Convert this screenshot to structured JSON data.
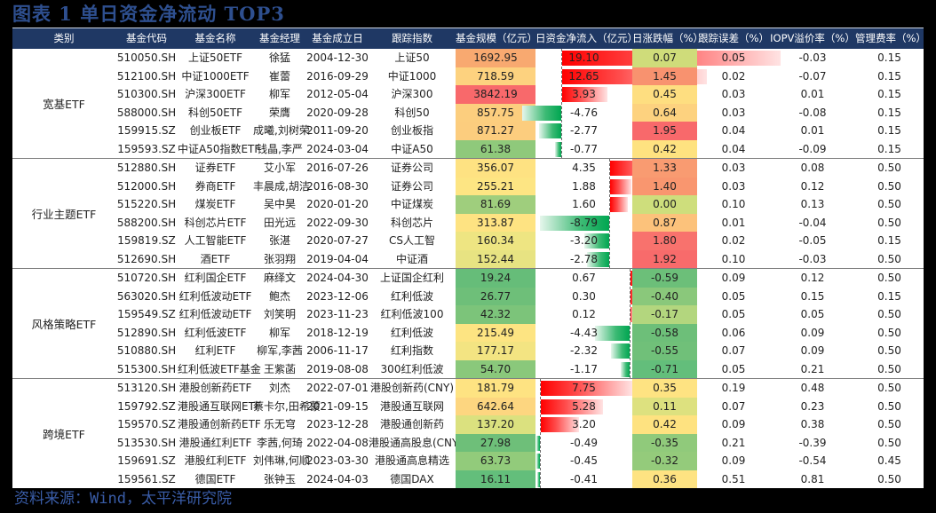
{
  "title": "图表 1 单日资金净流动 TOP3",
  "footer": "资料来源：Wind，太平洋研究院",
  "headers": [
    "类别",
    "基金代码",
    "基金名称",
    "基金经理",
    "基金成立日",
    "跟踪指数",
    "基金规模（亿元）",
    "日资金净流入（亿元）",
    "日涨跌幅（%）",
    "跟踪误差（%）",
    "IOPV溢价率（%）",
    "管理费率（%）"
  ],
  "colors": {
    "header_bg": "#1f3864",
    "title": "#2e4f8f",
    "footer": "#3a5da8",
    "bar_pos": "#ff0000",
    "bar_neg": "#00a651"
  },
  "groups": [
    {
      "label": "宽基ETF",
      "rows": [
        {
          "code": "510050.SH",
          "name": "上证50ETF",
          "manager": "徐猛",
          "date": "2004-12-30",
          "index": "上证50",
          "size": "1692.95",
          "flow": "19.10",
          "chg": "0.07",
          "te": "0.05",
          "iopv": "-0.03",
          "fee": "0.15",
          "size_color": "#f8a970",
          "chg_color": "#cfdc7a"
        },
        {
          "code": "512100.SH",
          "name": "中证1000ETF",
          "manager": "崔蕾",
          "date": "2016-09-29",
          "index": "中证1000",
          "size": "718.59",
          "flow": "12.65",
          "chg": "1.45",
          "te": "0.02",
          "iopv": "-0.07",
          "fee": "0.15",
          "size_color": "#fdd27f",
          "chg_color": "#f8926f"
        },
        {
          "code": "510300.SH",
          "name": "沪深300ETF",
          "manager": "柳军",
          "date": "2012-05-04",
          "index": "沪深300",
          "size": "3842.19",
          "flow": "3.93",
          "chg": "0.45",
          "te": "0.03",
          "iopv": "0.01",
          "fee": "0.15",
          "size_color": "#f8696b",
          "chg_color": "#fede80"
        },
        {
          "code": "588000.SH",
          "name": "科创50ETF",
          "manager": "荣膺",
          "date": "2020-09-28",
          "index": "科创50",
          "size": "857.75",
          "flow": "-4.76",
          "chg": "0.64",
          "te": "0.03",
          "iopv": "-0.08",
          "fee": "0.15",
          "size_color": "#fcce7e",
          "chg_color": "#fdd27f"
        },
        {
          "code": "159915.SZ",
          "name": "创业板ETF",
          "manager": "成曦,刘树荣",
          "date": "2011-09-20",
          "index": "创业板指",
          "size": "871.27",
          "flow": "-2.77",
          "chg": "1.95",
          "te": "0.04",
          "iopv": "0.01",
          "fee": "0.15",
          "size_color": "#fccd7e",
          "chg_color": "#f8696b"
        },
        {
          "code": "159593.SZ",
          "name": "中证A50指数ETF",
          "manager": "钱晶,李严",
          "date": "2024-03-04",
          "index": "中证A50",
          "size": "61.38",
          "flow": "-0.77",
          "chg": "0.42",
          "te": "0.04",
          "iopv": "-0.09",
          "fee": "0.15",
          "size_color": "#8fc97b",
          "chg_color": "#fee280"
        }
      ]
    },
    {
      "label": "行业主题ETF",
      "rows": [
        {
          "code": "512880.SH",
          "name": "证券ETF",
          "manager": "艾小军",
          "date": "2016-07-26",
          "index": "证券公司",
          "size": "356.07",
          "flow": "4.35",
          "chg": "1.33",
          "te": "0.03",
          "iopv": "0.08",
          "fee": "0.50",
          "size_color": "#fee282",
          "chg_color": "#f99b71"
        },
        {
          "code": "512000.SH",
          "name": "券商ETF",
          "manager": "丰晨成,胡洁",
          "date": "2016-08-30",
          "index": "证券公司",
          "size": "255.21",
          "flow": "1.88",
          "chg": "1.40",
          "te": "0.03",
          "iopv": "0.12",
          "fee": "0.50",
          "size_color": "#fde583",
          "chg_color": "#f9966f"
        },
        {
          "code": "515220.SH",
          "name": "煤炭ETF",
          "manager": "吴中昊",
          "date": "2020-01-20",
          "index": "中证煤炭",
          "size": "81.69",
          "flow": "1.60",
          "chg": "0.00",
          "te": "0.10",
          "iopv": "0.13",
          "fee": "0.50",
          "size_color": "#9fce7d",
          "chg_color": "#cede7c"
        },
        {
          "code": "588200.SH",
          "name": "科创芯片ETF",
          "manager": "田光远",
          "date": "2022-09-30",
          "index": "科创芯片",
          "size": "313.87",
          "flow": "-8.79",
          "chg": "0.87",
          "te": "0.01",
          "iopv": "-0.04",
          "fee": "0.50",
          "size_color": "#fee382",
          "chg_color": "#fcc27b"
        },
        {
          "code": "159819.SZ",
          "name": "人工智能ETF",
          "manager": "张湛",
          "date": "2020-07-27",
          "index": "CS人工智",
          "size": "160.34",
          "flow": "-3.20",
          "chg": "1.80",
          "te": "0.02",
          "iopv": "-0.05",
          "fee": "0.15",
          "size_color": "#eee582",
          "chg_color": "#f8726d"
        },
        {
          "code": "512690.SH",
          "name": "酒ETF",
          "manager": "张羽翔",
          "date": "2019-04-04",
          "index": "中证酒",
          "size": "152.44",
          "flow": "-2.78",
          "chg": "1.92",
          "te": "0.10",
          "iopv": "-0.03",
          "fee": "0.50",
          "size_color": "#e7e382",
          "chg_color": "#f86b6b"
        }
      ]
    },
    {
      "label": "风格策略ETF",
      "rows": [
        {
          "code": "510720.SH",
          "name": "红利国企ETF",
          "manager": "麻绎文",
          "date": "2024-04-30",
          "index": "上证国企红利",
          "size": "19.24",
          "flow": "0.67",
          "chg": "-0.59",
          "te": "0.09",
          "iopv": "0.12",
          "fee": "0.50",
          "size_color": "#66bd79",
          "chg_color": "#6cbf79"
        },
        {
          "code": "563020.SH",
          "name": "红利低波动ETF",
          "manager": "鲍杰",
          "date": "2023-12-06",
          "index": "红利低波",
          "size": "26.77",
          "flow": "0.30",
          "chg": "-0.40",
          "te": "0.05",
          "iopv": "0.15",
          "fee": "0.15",
          "size_color": "#6ebf79",
          "chg_color": "#8ac87b"
        },
        {
          "code": "159549.SZ",
          "name": "红利低波动ETF",
          "manager": "刘笑明",
          "date": "2023-11-23",
          "index": "红利低波100",
          "size": "42.32",
          "flow": "0.12",
          "chg": "-0.17",
          "te": "0.05",
          "iopv": "0.05",
          "fee": "0.50",
          "size_color": "#7cc47a",
          "chg_color": "#b3d67e"
        },
        {
          "code": "512890.SH",
          "name": "红利低波ETF",
          "manager": "柳军",
          "date": "2018-12-19",
          "index": "红利低波",
          "size": "215.49",
          "flow": "-4.43",
          "chg": "-0.58",
          "te": "0.06",
          "iopv": "0.09",
          "fee": "0.50",
          "size_color": "#fde482",
          "chg_color": "#6dbf79"
        },
        {
          "code": "510880.SH",
          "name": "红利ETF",
          "manager": "柳军,李茜",
          "date": "2006-11-17",
          "index": "红利指数",
          "size": "177.17",
          "flow": "-2.32",
          "chg": "-0.55",
          "te": "0.07",
          "iopv": "0.09",
          "fee": "0.50",
          "size_color": "#f3e482",
          "chg_color": "#70c079"
        },
        {
          "code": "515300.SH",
          "name": "红利低波ETF基金",
          "manager": "王紫菡",
          "date": "2019-08-08",
          "index": "300红利低波",
          "size": "54.70",
          "flow": "-1.17",
          "chg": "-0.71",
          "te": "0.05",
          "iopv": "0.21",
          "fee": "0.50",
          "size_color": "#8ac87b",
          "chg_color": "#63be7b"
        }
      ]
    },
    {
      "label": "跨境ETF",
      "rows": [
        {
          "code": "513120.SH",
          "name": "港股创新药ETF",
          "manager": "刘杰",
          "date": "2022-07-01",
          "index": "港股创新药(CNY)",
          "size": "181.79",
          "flow": "7.75",
          "chg": "0.35",
          "te": "0.19",
          "iopv": "0.48",
          "fee": "0.50",
          "size_color": "#fee382",
          "chg_color": "#fee382"
        },
        {
          "code": "159792.SZ",
          "name": "港股通互联网ETF",
          "manager": "蔡卡尔,田希蒙",
          "date": "2021-09-15",
          "index": "港股通互联网",
          "size": "642.64",
          "flow": "5.28",
          "chg": "0.11",
          "te": "0.07",
          "iopv": "0.23",
          "fee": "0.50",
          "size_color": "#fdd680",
          "chg_color": "#dde17f"
        },
        {
          "code": "159570.SZ",
          "name": "港股通创新药ETF",
          "manager": "乐无穹",
          "date": "2023-12-28",
          "index": "港股通创新药",
          "size": "137.20",
          "flow": "3.20",
          "chg": "0.42",
          "te": "0.09",
          "iopv": "0.38",
          "fee": "0.50",
          "size_color": "#dbe17f",
          "chg_color": "#fee280"
        },
        {
          "code": "513530.SH",
          "name": "港股通红利ETF",
          "manager": "李茜,何琦",
          "date": "2022-04-08",
          "index": "港股通高股息(CNY)",
          "size": "27.98",
          "flow": "-0.49",
          "chg": "-0.35",
          "te": "0.21",
          "iopv": "-0.39",
          "fee": "0.50",
          "size_color": "#6ebf79",
          "chg_color": "#90ca7b"
        },
        {
          "code": "159691.SZ",
          "name": "港股红利ETF",
          "manager": "刘伟琳,何顺",
          "date": "2023-03-30",
          "index": "港股通高息精选",
          "size": "63.73",
          "flow": "-0.45",
          "chg": "-0.32",
          "te": "0.09",
          "iopv": "-0.54",
          "fee": "0.45",
          "size_color": "#92cb7b",
          "chg_color": "#94cb7b"
        },
        {
          "code": "159561.SZ",
          "name": "德国ETF",
          "manager": "张钟玉",
          "date": "2024-04-03",
          "index": "德国DAX",
          "size": "16.11",
          "flow": "-0.41",
          "chg": "0.36",
          "te": "0.51",
          "iopv": "0.81",
          "fee": "0.50",
          "size_color": "#63be7b",
          "chg_color": "#fee382"
        }
      ]
    }
  ]
}
